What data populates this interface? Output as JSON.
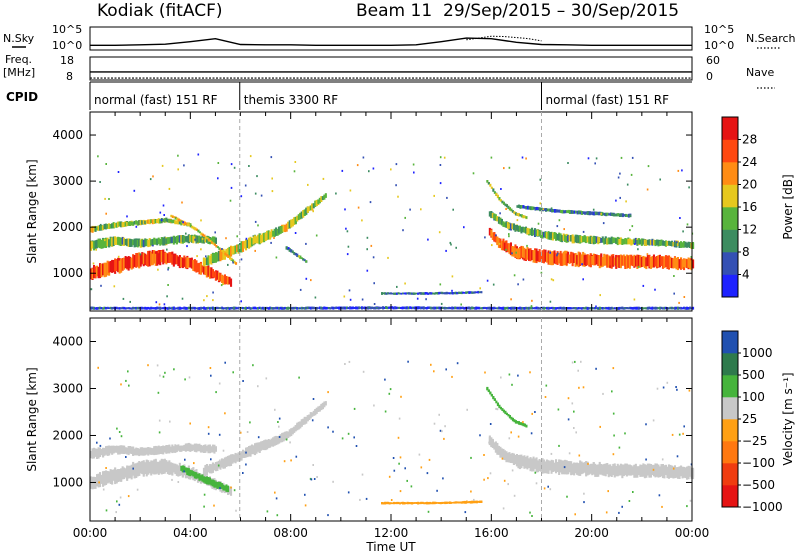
{
  "header": {
    "station": "Kodiak (fitACF)",
    "beam": "Beam 11",
    "dates": "29/Sep/2015 – 30/Sep/2015"
  },
  "side_labels": {
    "nsky": "N.Sky",
    "nsearch": "N.Search",
    "freq": "Freq.",
    "freq_unit": "[MHz]",
    "nave": "Nave",
    "cpid": "CPID"
  },
  "chart_data": [
    {
      "type": "line",
      "name": "noise-panel",
      "ylabel_left": "N.Sky",
      "ylabel_right": "N.Search",
      "y_ticks_left": [
        "10^5",
        "10^0"
      ],
      "y_ticks_right": [
        "10^5",
        "10^0"
      ],
      "y_scale": "log",
      "xlim": [
        0,
        24
      ],
      "series": [
        {
          "name": "N.Sky",
          "style": "solid",
          "x": [
            0,
            1,
            2,
            3,
            4,
            5,
            6,
            7,
            8,
            9,
            10,
            11,
            12,
            13,
            14,
            15,
            16,
            17,
            18,
            19,
            20,
            21,
            22,
            23,
            24
          ],
          "y": [
            3,
            3,
            4,
            6,
            30,
            200,
            5,
            4,
            4,
            3,
            3,
            3,
            3,
            4,
            30,
            300,
            200,
            20,
            5,
            4,
            3,
            3,
            3,
            3,
            3
          ]
        },
        {
          "name": "N.Search",
          "style": "dotted",
          "x": [
            15,
            15.5,
            16,
            16.5,
            17,
            17.5,
            18
          ],
          "y": [
            100,
            300,
            1000,
            800,
            400,
            200,
            50
          ]
        }
      ]
    },
    {
      "type": "line",
      "name": "frequency-panel",
      "ylabel_left": "Freq. [MHz]",
      "ylabel_right": "Nave",
      "y_ticks_left": [
        "18",
        "8"
      ],
      "y_ticks_right": [
        "60",
        "0"
      ],
      "xlim": [
        0,
        24
      ],
      "series": [
        {
          "name": "Freq.",
          "style": "solid",
          "x": [
            0,
            24
          ],
          "y": [
            11.5,
            11.5
          ]
        },
        {
          "name": "Nave",
          "style": "dotted",
          "x": [
            0,
            24
          ],
          "y": [
            5,
            5
          ]
        }
      ]
    },
    {
      "type": "table",
      "name": "cpid-bar",
      "title": "CPID",
      "segments": [
        {
          "label": "normal (fast) 151 RF",
          "start": 0,
          "end": 5.97
        },
        {
          "label": "themis 3300 RF",
          "start": 5.97,
          "end": 18.0
        },
        {
          "label": "normal (fast) 151 RF",
          "start": 18.0,
          "end": 24
        }
      ]
    },
    {
      "type": "heatmap",
      "name": "power-panel",
      "ylabel": "Slant Range [km]",
      "y_ticks": [
        "1000",
        "2000",
        "3000",
        "4000"
      ],
      "ylim": [
        180,
        4500
      ],
      "xlim": [
        0,
        24
      ],
      "colorbar_label": "Power [dB]",
      "colorbar_ticks": [
        "4",
        "8",
        "12",
        "16",
        "20",
        "24",
        "28"
      ],
      "colorbar_range": [
        0,
        30
      ],
      "bands": [
        {
          "x": [
            0,
            1,
            2,
            3,
            4,
            5,
            5.6
          ],
          "center": [
            1000,
            1150,
            1300,
            1350,
            1200,
            950,
            800
          ],
          "width": [
            320,
            360,
            380,
            350,
            300,
            260,
            200
          ],
          "value": 25
        },
        {
          "x": [
            0,
            1,
            2,
            3,
            4,
            5
          ],
          "center": [
            1600,
            1700,
            1650,
            1700,
            1750,
            1700
          ],
          "width": [
            260,
            220,
            200,
            200,
            200,
            200
          ],
          "value": 12
        },
        {
          "x": [
            0,
            1,
            2,
            3,
            4
          ],
          "center": [
            1950,
            2050,
            2100,
            2150,
            2050
          ],
          "width": [
            160,
            140,
            120,
            120,
            100
          ],
          "value": 14
        },
        {
          "x": [
            4.5,
            5.5,
            6.5,
            7.2,
            7.8,
            8.6,
            9.4
          ],
          "center": [
            1250,
            1450,
            1700,
            1850,
            2000,
            2350,
            2700
          ],
          "width": [
            240,
            260,
            260,
            220,
            200,
            180,
            140
          ],
          "value": 15
        },
        {
          "x": [
            3.2,
            4.2,
            5.2,
            5.8
          ],
          "center": [
            2250,
            1950,
            1500,
            1200
          ],
          "width": [
            70,
            70,
            70,
            70
          ],
          "value": 18
        },
        {
          "x": [
            7.8,
            8.6
          ],
          "center": [
            1550,
            1250
          ],
          "width": [
            90,
            70
          ],
          "value": 10
        },
        {
          "x": [
            11.6,
            13,
            14.5,
            15.6
          ],
          "center": [
            560,
            560,
            570,
            590
          ],
          "width": [
            60,
            60,
            60,
            60
          ],
          "value": 6
        },
        {
          "x": [
            15.9,
            16.3,
            17,
            18,
            19.5,
            21,
            22.5,
            24
          ],
          "center": [
            1900,
            1650,
            1450,
            1350,
            1300,
            1250,
            1250,
            1200
          ],
          "width": [
            220,
            280,
            320,
            340,
            340,
            320,
            320,
            300
          ],
          "value": 24
        },
        {
          "x": [
            15.9,
            16.5,
            17.5,
            19,
            21,
            23,
            24
          ],
          "center": [
            2300,
            2050,
            1900,
            1750,
            1700,
            1650,
            1600
          ],
          "width": [
            160,
            180,
            200,
            200,
            180,
            160,
            160
          ],
          "value": 12
        },
        {
          "x": [
            15.8,
            16.3,
            16.9,
            17.4
          ],
          "center": [
            3000,
            2600,
            2300,
            2200
          ],
          "width": [
            80,
            80,
            80,
            80
          ],
          "value": 14
        },
        {
          "x": [
            17,
            18.5,
            20,
            21.5
          ],
          "center": [
            2450,
            2350,
            2300,
            2250
          ],
          "width": [
            90,
            90,
            90,
            90
          ],
          "value": 8
        },
        {
          "x": [
            0,
            4,
            8,
            12,
            16,
            20,
            24
          ],
          "center": [
            240,
            240,
            240,
            250,
            240,
            240,
            240
          ],
          "width": [
            70,
            70,
            70,
            70,
            70,
            70,
            70
          ],
          "value": 5
        }
      ]
    },
    {
      "type": "heatmap",
      "name": "velocity-panel",
      "ylabel": "Slant Range [km]",
      "y_ticks": [
        "1000",
        "2000",
        "3000",
        "4000"
      ],
      "ylim": [
        180,
        4500
      ],
      "xlim": [
        0,
        24
      ],
      "xlabel": "Time UT",
      "x_ticks": [
        "00:00",
        "04:00",
        "08:00",
        "12:00",
        "16:00",
        "20:00",
        "00:00"
      ],
      "colorbar_label": "Velocity [m s⁻¹]",
      "colorbar_ticks": [
        "1000",
        "500",
        "100",
        "25",
        "−25",
        "−100",
        "−500",
        "−1000"
      ],
      "bands": [
        {
          "x": [
            0,
            1,
            2,
            3,
            4,
            5,
            5.6
          ],
          "center": [
            1000,
            1150,
            1300,
            1350,
            1200,
            950,
            800
          ],
          "width": [
            320,
            360,
            380,
            350,
            300,
            260,
            200
          ],
          "value": "~0"
        },
        {
          "x": [
            0,
            1,
            2,
            3,
            4,
            5
          ],
          "center": [
            1600,
            1700,
            1650,
            1700,
            1750,
            1700
          ],
          "width": [
            260,
            220,
            200,
            200,
            200,
            200
          ],
          "value": "~0"
        },
        {
          "x": [
            4.5,
            5.5,
            6.5,
            7.2,
            7.8,
            8.6,
            9.4
          ],
          "center": [
            1250,
            1450,
            1700,
            1850,
            2000,
            2350,
            2700
          ],
          "width": [
            240,
            260,
            260,
            220,
            200,
            180,
            140
          ],
          "value": "~0"
        },
        {
          "x": [
            3.6,
            4.6,
            5.5
          ],
          "center": [
            1300,
            1050,
            850
          ],
          "width": [
            160,
            180,
            200
          ],
          "value": "200"
        },
        {
          "x": [
            11.6,
            13,
            14.5,
            15.6
          ],
          "center": [
            560,
            560,
            570,
            590
          ],
          "width": [
            60,
            60,
            60,
            60
          ],
          "value": "-80"
        },
        {
          "x": [
            15.9,
            16.3,
            17,
            18,
            19.5,
            21,
            22.5,
            24
          ],
          "center": [
            1900,
            1650,
            1450,
            1350,
            1300,
            1250,
            1250,
            1200
          ],
          "width": [
            220,
            280,
            320,
            340,
            340,
            320,
            320,
            300
          ],
          "value": "~0"
        },
        {
          "x": [
            15.8,
            16.3,
            16.9,
            17.4
          ],
          "center": [
            3000,
            2600,
            2300,
            2200
          ],
          "width": [
            80,
            80,
            80,
            80
          ],
          "value": "200"
        }
      ]
    }
  ],
  "colors": {
    "power_scale": [
      "#1e22ff",
      "#3450b4",
      "#3c8c60",
      "#58b43c",
      "#e6c81e",
      "#ff8c14",
      "#ff4810",
      "#e61414"
    ],
    "velocity_scale": [
      "#2050b0",
      "#2e7a4c",
      "#46b43c",
      "#c8c8c8",
      "#ffa014",
      "#ff7810",
      "#f03c10",
      "#e61414"
    ]
  }
}
